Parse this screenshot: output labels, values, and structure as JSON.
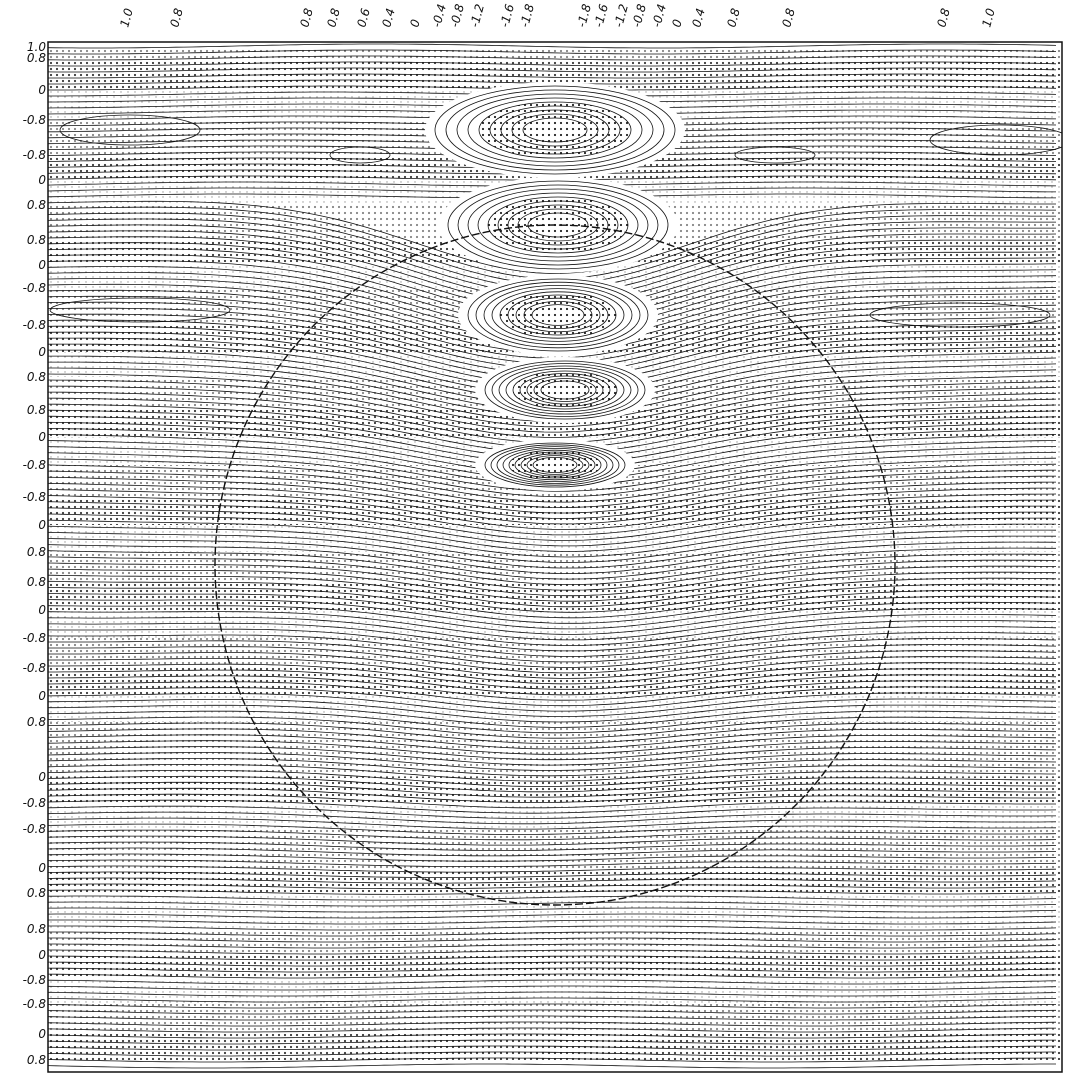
{
  "figure": {
    "top_labels": [
      "1.0",
      "0.8",
      "0.8",
      "0.8",
      "0.6",
      "0.4",
      "0",
      "-0.4",
      "-0.8",
      "-1.2",
      "-1.6",
      "-1.8",
      "-1.8",
      "-1.6",
      "-1.2",
      "-0.8",
      "-0.4",
      "0",
      "0.4",
      "0.8",
      "0.8",
      "0.8",
      "1.0"
    ],
    "left_labels": [
      "1.0",
      "0.8",
      "0",
      "-0.8",
      "-0.8",
      "0",
      "0.8",
      "0.8",
      "0",
      "-0.8",
      "-0.8",
      "0",
      "0.8",
      "0.8",
      "0",
      "-0.8",
      "-0.8",
      "0",
      "0.8",
      "0.8",
      "0",
      "-0.8",
      "-0.8",
      "0",
      "0.8",
      "0",
      "-0.8",
      "-0.8",
      "0",
      "0.8",
      "0.8",
      "0",
      "-0.8",
      "-0.8",
      "0",
      "0.8"
    ]
  }
}
